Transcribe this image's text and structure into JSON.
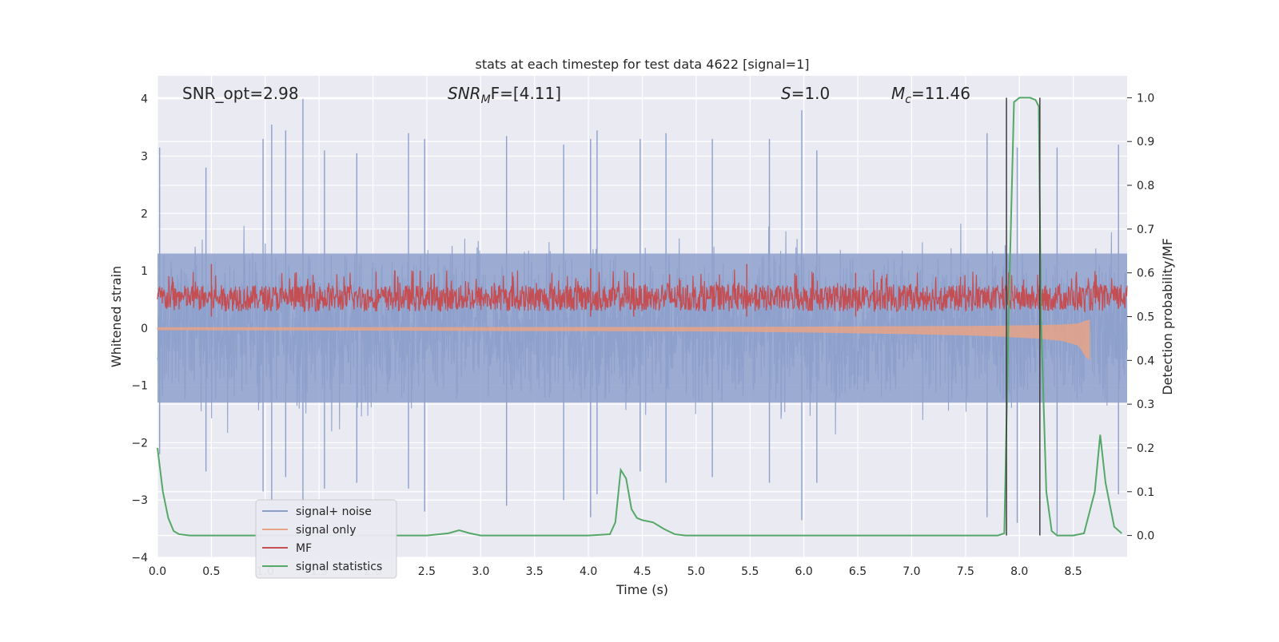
{
  "chart_data": {
    "type": "line",
    "title": "stats at each timestep for test data 4622 [signal=1]",
    "xlabel": "Time (s)",
    "ylabel": "Whitened strain",
    "ylabel_right": "Detection probability/MF",
    "xlim": [
      0.0,
      9.0
    ],
    "ylim": [
      -4.0,
      4.4
    ],
    "ylim_right": [
      -0.05,
      1.05
    ],
    "x_ticks": [
      "0.0",
      "0.5",
      "1.0",
      "1.5",
      "2.0",
      "2.5",
      "3.0",
      "3.5",
      "4.0",
      "4.5",
      "5.0",
      "5.5",
      "6.0",
      "6.5",
      "7.0",
      "7.5",
      "8.0",
      "8.5"
    ],
    "y_ticks": [
      "−4",
      "−3",
      "−2",
      "−1",
      "0",
      "1",
      "2",
      "3",
      "4"
    ],
    "y_ticks_right": [
      "0.0",
      "0.1",
      "0.2",
      "0.3",
      "0.4",
      "0.5",
      "0.6",
      "0.7",
      "0.8",
      "0.9",
      "1.0"
    ],
    "grid": true,
    "legend_position": "lower-left",
    "annotations": {
      "snr_opt": "SNR_opt=2.98",
      "snr_mf_main": "SNR",
      "snr_mf_sub": "M",
      "snr_mf_rest": "F=[4.11]",
      "s_main": "S",
      "s_rest": "=1.0",
      "mc_main": "M",
      "mc_sub": "c",
      "mc_rest": "=11.46"
    },
    "vlines_x": [
      7.88,
      8.19
    ],
    "series": [
      {
        "name": "signal+ noise",
        "color": "#8da0cb",
        "axis": "left",
        "description_values": "noise band approx ±1.3 with spikes to ±3.5",
        "x": [
          0.02,
          0.45,
          0.98,
          1.06,
          1.19,
          1.35,
          1.55,
          1.85,
          2.33,
          2.48,
          3.24,
          3.77,
          4.02,
          4.08,
          4.48,
          4.72,
          5.15,
          5.68,
          5.98,
          6.12,
          7.7,
          7.98,
          8.35,
          8.92
        ],
        "peaks": [
          3.15,
          2.8,
          3.3,
          3.55,
          3.45,
          4.0,
          3.1,
          3.05,
          3.4,
          3.3,
          3.35,
          3.2,
          3.3,
          3.45,
          3.3,
          3.4,
          3.3,
          3.3,
          3.8,
          3.1,
          3.4,
          3.15,
          3.15,
          3.2
        ],
        "troughs": [
          -2.2,
          -2.5,
          -2.85,
          -3.0,
          -2.6,
          -3.2,
          -2.8,
          -2.7,
          -2.8,
          -3.2,
          -3.1,
          -3.0,
          -3.3,
          -2.9,
          -2.5,
          -2.7,
          -2.6,
          -2.7,
          -3.35,
          -2.7,
          -3.3,
          -3.4,
          -3.6,
          -2.9
        ]
      },
      {
        "name": "signal only",
        "color": "#e8a487",
        "axis": "left",
        "x": [
          0.0,
          5.0,
          6.0,
          7.0,
          7.5,
          7.8,
          8.0,
          8.2,
          8.4,
          8.55,
          8.62,
          8.65
        ],
        "envelope": [
          0.03,
          0.05,
          0.07,
          0.1,
          0.12,
          0.14,
          0.16,
          0.18,
          0.22,
          0.3,
          0.5,
          0.55
        ]
      },
      {
        "name": "MF",
        "color": "#c44e52",
        "axis": "right",
        "base": 0.5,
        "x": [
          0.5,
          4.02,
          4.42,
          5.47,
          6.48
        ],
        "peaks": [
          0.62,
          0.61,
          0.6,
          0.62,
          0.6
        ]
      },
      {
        "name": "signal statistics",
        "color": "#55a868",
        "axis": "right",
        "x": [
          0.0,
          0.05,
          0.1,
          0.15,
          0.2,
          0.3,
          0.5,
          1.0,
          2.0,
          2.5,
          2.7,
          2.8,
          2.9,
          3.0,
          3.5,
          4.0,
          4.2,
          4.25,
          4.3,
          4.35,
          4.4,
          4.45,
          4.5,
          4.6,
          4.7,
          4.8,
          4.9,
          5.0,
          6.0,
          7.0,
          7.5,
          7.8,
          7.86,
          7.9,
          7.95,
          8.0,
          8.1,
          8.15,
          8.18,
          8.2,
          8.25,
          8.3,
          8.35,
          8.4,
          8.5,
          8.6,
          8.7,
          8.75,
          8.8,
          8.88,
          8.95
        ],
        "values": [
          0.2,
          0.1,
          0.04,
          0.01,
          0.003,
          0.0,
          0.0,
          0.0,
          0.0,
          0.0,
          0.005,
          0.012,
          0.005,
          0.0,
          0.0,
          0.0,
          0.003,
          0.03,
          0.15,
          0.13,
          0.06,
          0.04,
          0.035,
          0.03,
          0.015,
          0.003,
          0.0,
          0.0,
          0.0,
          0.0,
          0.0,
          0.0,
          0.005,
          0.5,
          0.99,
          1.0,
          1.0,
          0.995,
          0.98,
          0.5,
          0.1,
          0.01,
          0.0,
          0.0,
          0.0,
          0.005,
          0.1,
          0.23,
          0.12,
          0.02,
          0.005
        ]
      }
    ]
  }
}
